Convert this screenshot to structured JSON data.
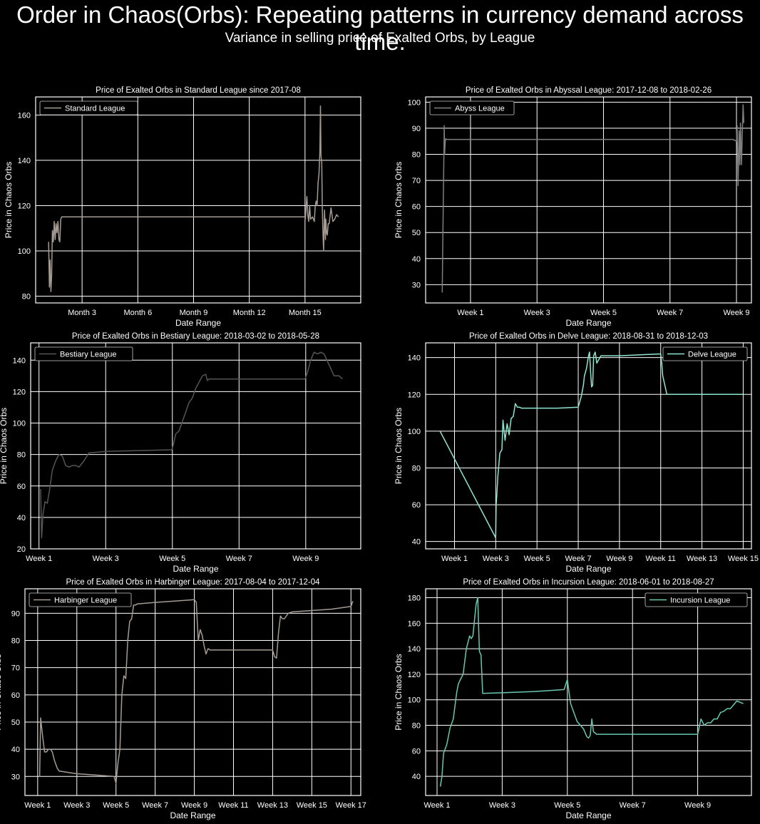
{
  "header": {
    "title": "Order in Chaos(Orbs): Repeating patterns in currency demand across time.",
    "subtitle": "Variance in selling price of Exalted Orbs, by League"
  },
  "colors": {
    "background": "#000000",
    "grid": "#ffffff",
    "text": "#ffffff"
  },
  "chart_data": [
    {
      "type": "line",
      "title": "Price of Exalted Orbs in Standard League since 2017-08",
      "xlabel": "Date Range",
      "ylabel": "Price in Chaos Orbs",
      "xlim": [
        0,
        17.5
      ],
      "ylim": [
        77,
        168
      ],
      "xticks": [
        2.5,
        5.5,
        8.5,
        11.5,
        14.5
      ],
      "xtick_labels": [
        "Month 3",
        "Month 6",
        "Month 9",
        "Month 12",
        "Month 15"
      ],
      "yticks": [
        80,
        100,
        120,
        140,
        160
      ],
      "legend_position": "top-left",
      "grid": true,
      "series": [
        {
          "name": "Standard League",
          "color": "#a49c93",
          "x": [
            0.7,
            0.74,
            0.78,
            0.82,
            0.86,
            0.9,
            0.95,
            1.0,
            1.05,
            1.1,
            1.15,
            1.2,
            1.25,
            1.3,
            1.35,
            1.4,
            1.45,
            1.5,
            1.55,
            1.6,
            1.62,
            2.5,
            5.5,
            8.5,
            11.5,
            14.4,
            14.5,
            14.52,
            14.55,
            14.6,
            14.65,
            14.7,
            14.75,
            14.8,
            14.9,
            15.0,
            15.05,
            15.1,
            15.15,
            15.2,
            15.25,
            15.3,
            15.33,
            15.36,
            15.4,
            15.43,
            15.46,
            15.5,
            15.55,
            15.6,
            15.62,
            15.66,
            15.7,
            15.75,
            15.8,
            15.9,
            16.0,
            16.1,
            16.2,
            16.3
          ],
          "y": [
            104,
            84,
            96,
            82,
            89,
            109,
            104,
            113,
            105,
            112,
            108,
            113,
            105,
            104,
            114,
            115,
            115,
            115,
            115,
            115,
            115,
            115,
            115,
            115,
            115,
            115,
            115,
            114,
            118,
            124,
            116,
            113,
            120,
            114,
            115,
            113,
            120,
            122,
            120,
            130,
            134,
            144,
            164,
            142,
            139,
            119,
            110,
            100,
            118,
            105,
            114,
            108,
            107,
            112,
            112,
            119,
            113,
            114,
            116,
            115
          ]
        }
      ]
    },
    {
      "type": "line",
      "title": "Price of Exalted Orbs in Abyssal League: 2017-12-08 to 2018-02-26",
      "xlabel": "Date Range",
      "ylabel": "Price in Chaos Orbs",
      "xlim": [
        -0.35,
        9.45
      ],
      "ylim": [
        23,
        102
      ],
      "xticks": [
        1,
        3,
        5,
        7,
        9
      ],
      "xtick_labels": [
        "Week 1",
        "Week 3",
        "Week 5",
        "Week 7",
        "Week 9"
      ],
      "yticks": [
        30,
        40,
        50,
        60,
        70,
        80,
        90,
        100
      ],
      "legend_position": "top-left",
      "grid": true,
      "series": [
        {
          "name": "Abyss League",
          "color": "#7f7f7f",
          "x": [
            0.15,
            0.16,
            0.18,
            0.2,
            0.21,
            0.22,
            0.24,
            0.26,
            0.28,
            1,
            3,
            5,
            7,
            8.9,
            9.0,
            9.02,
            9.05,
            9.08,
            9.1,
            9.12,
            9.15,
            9.18,
            9.2,
            9.22
          ],
          "y": [
            27,
            40,
            60,
            79,
            91,
            80,
            85,
            86,
            85.7,
            85.7,
            85.7,
            85.7,
            85.7,
            85.7,
            85,
            91,
            68,
            89,
            76,
            92,
            76,
            90,
            99,
            92
          ]
        }
      ]
    },
    {
      "type": "line",
      "title": "Price of Exalted Orbs in Bestiary League: 2018-03-02 to 2018-05-28",
      "xlabel": "Date Range",
      "ylabel": "Price in Chaos Orbs",
      "xlim": [
        0.75,
        10.65
      ],
      "ylim": [
        20,
        151
      ],
      "xticks": [
        1,
        3,
        5,
        7,
        9
      ],
      "xtick_labels": [
        "Week 1",
        "Week 3",
        "Week 5",
        "Week 7",
        "Week 9"
      ],
      "yticks": [
        20,
        40,
        60,
        80,
        100,
        120,
        140
      ],
      "legend_position": "top-left",
      "grid": true,
      "series": [
        {
          "name": "Bestiary League",
          "color": "#555555",
          "x": [
            1.05,
            1.08,
            1.12,
            1.18,
            1.25,
            1.32,
            1.4,
            1.5,
            1.6,
            1.7,
            1.8,
            1.9,
            2.0,
            2.1,
            2.2,
            2.35,
            2.5,
            3.0,
            4.0,
            4.98,
            5.0,
            5.05,
            5.1,
            5.2,
            5.3,
            5.4,
            5.5,
            5.6,
            5.7,
            5.8,
            5.9,
            6.0,
            6.05,
            6.1,
            6.2,
            7.0,
            8.0,
            8.98,
            9.05,
            9.15,
            9.25,
            9.35,
            9.45,
            9.55,
            9.7,
            9.85,
            10.0,
            10.1
          ],
          "y": [
            58,
            27,
            42,
            50,
            49,
            58,
            70,
            76,
            80,
            79,
            73,
            72,
            73,
            73,
            72,
            76,
            81,
            82,
            82.5,
            83,
            84,
            88,
            93,
            95,
            101,
            107,
            113,
            116,
            122,
            126,
            130,
            131,
            127,
            128,
            128,
            128,
            128,
            128,
            132,
            140,
            145,
            144,
            145,
            144,
            137,
            130,
            130,
            128
          ]
        }
      ]
    },
    {
      "type": "line",
      "title": "Price of Exalted Orbs in Delve League: 2018-08-31 to 2018-12-03",
      "xlabel": "Date Range",
      "ylabel": "Price in Chaos Orbs",
      "xlim": [
        -0.4,
        15.4
      ],
      "ylim": [
        36,
        148
      ],
      "xticks": [
        1,
        3,
        5,
        7,
        9,
        11,
        13,
        15
      ],
      "xtick_labels": [
        "Week 1",
        "Week 3",
        "Week 5",
        "Week 7",
        "Week 9",
        "Week 11",
        "Week 13",
        "Week 15"
      ],
      "yticks": [
        40,
        60,
        80,
        100,
        120,
        140
      ],
      "legend_position": "top-right",
      "grid": true,
      "series": [
        {
          "name": "Delve League",
          "color": "#8de5d0",
          "x": [
            0.3,
            3.0,
            3.02,
            3.05,
            3.1,
            3.2,
            3.3,
            3.35,
            3.45,
            3.55,
            3.65,
            3.75,
            3.85,
            3.95,
            4.05,
            4.15,
            4.25,
            4.35,
            4.5,
            5.0,
            6.0,
            7.0,
            7.05,
            7.15,
            7.25,
            7.3,
            7.4,
            7.5,
            7.55,
            7.6,
            7.65,
            7.7,
            7.75,
            7.82,
            7.9,
            8.0,
            8.1,
            8.2,
            8.3,
            8.4,
            8.5,
            9.0,
            10.0,
            11.0,
            11.05,
            11.1,
            11.2,
            11.3,
            11.4,
            11.5,
            12.0,
            13.0,
            14.0,
            15.0
          ],
          "y": [
            100,
            42,
            60,
            65,
            75,
            88,
            90,
            106,
            95,
            104,
            98,
            107,
            108,
            115,
            113,
            113,
            112.5,
            112.5,
            112.5,
            112.5,
            112.5,
            113,
            115,
            119,
            125,
            130,
            134,
            141,
            143,
            132,
            124,
            125,
            141,
            143,
            137,
            139,
            141,
            141,
            141,
            141,
            141,
            141,
            141.5,
            142,
            137,
            130,
            125,
            120,
            120,
            120,
            120,
            120,
            120,
            120
          ]
        }
      ]
    },
    {
      "type": "line",
      "title": "Price of Exalted Orbs in Harbinger League: 2017-08-04 to 2017-12-04",
      "xlabel": "Date Range",
      "ylabel": "Price in Chaos Orbs",
      "xlim": [
        0.35,
        17.5
      ],
      "ylim": [
        23,
        99
      ],
      "xticks": [
        1,
        3,
        5,
        7,
        9,
        11,
        13,
        15,
        17
      ],
      "xtick_labels": [
        "Week 1",
        "Week 3",
        "Week 5",
        "Week 7",
        "Week 9",
        "Week 11",
        "Week 13",
        "Week 15",
        "Week 17"
      ],
      "yticks": [
        30,
        40,
        50,
        60,
        70,
        80,
        90
      ],
      "legend_position": "top-left",
      "grid": true,
      "series": [
        {
          "name": "Harbinger League",
          "color": "#a49c93",
          "x": [
            1.1,
            1.15,
            1.25,
            1.35,
            1.45,
            1.55,
            1.65,
            1.75,
            1.85,
            2.0,
            2.1,
            3.0,
            4.0,
            4.9,
            5.0,
            5.1,
            5.2,
            5.3,
            5.4,
            5.5,
            5.6,
            5.7,
            5.8,
            5.9,
            6.0,
            6.1,
            6.2,
            7.0,
            8.0,
            9.0,
            9.1,
            9.2,
            9.3,
            9.4,
            9.5,
            9.6,
            9.7,
            9.8,
            10.0,
            11.0,
            12.0,
            13.0,
            13.1,
            13.2,
            13.3,
            13.4,
            13.5,
            13.6,
            13.7,
            13.8,
            14.0,
            15.0,
            16.0,
            17.0,
            17.1
          ],
          "y": [
            30,
            51.5,
            45,
            39,
            39,
            40,
            40,
            39,
            36,
            33,
            32,
            31,
            30.5,
            30,
            27.5,
            35,
            40,
            60,
            67,
            66,
            80,
            87,
            88,
            93,
            93,
            93.5,
            93.5,
            94,
            94.5,
            95,
            94,
            80,
            84,
            82,
            78,
            75,
            77,
            76.5,
            76.5,
            76.5,
            76.5,
            76.5,
            74,
            73.5,
            83,
            89,
            88,
            88,
            89,
            90,
            90.5,
            91,
            91.5,
            92.5,
            94.5
          ]
        }
      ]
    },
    {
      "type": "line",
      "title": "Price of Exalted Orbs in Incursion League: 2018-06-01 to 2018-08-27",
      "xlabel": "Date Range",
      "ylabel": "Price in Chaos Orbs",
      "xlim": [
        0.65,
        10.65
      ],
      "ylim": [
        25,
        187
      ],
      "xticks": [
        1,
        3,
        5,
        7,
        9
      ],
      "xtick_labels": [
        "Week 1",
        "Week 3",
        "Week 5",
        "Week 7",
        "Week 9"
      ],
      "yticks": [
        40,
        60,
        80,
        100,
        120,
        140,
        160,
        180
      ],
      "legend_position": "top-right",
      "grid": true,
      "series": [
        {
          "name": "Incursion League",
          "color": "#69c7af",
          "x": [
            1.1,
            1.15,
            1.2,
            1.3,
            1.4,
            1.5,
            1.6,
            1.65,
            1.7,
            1.8,
            1.9,
            2.0,
            2.05,
            2.1,
            2.2,
            2.25,
            2.3,
            2.35,
            2.4,
            3.0,
            4.0,
            4.9,
            5.0,
            5.05,
            5.1,
            5.2,
            5.3,
            5.4,
            5.5,
            5.6,
            5.65,
            5.7,
            5.75,
            5.8,
            5.9,
            6.0,
            7.0,
            8.0,
            8.9,
            9.0,
            9.1,
            9.2,
            9.3,
            9.4,
            9.5,
            9.6,
            9.7,
            9.8,
            9.9,
            10.0,
            10.1,
            10.2,
            10.4
          ],
          "y": [
            32,
            40,
            58,
            65,
            78,
            85,
            105,
            112,
            115,
            120,
            140,
            150,
            148,
            150,
            175,
            180,
            138,
            135,
            105,
            105.5,
            106.5,
            108,
            116,
            106,
            97,
            90,
            83,
            80,
            77,
            71,
            70,
            72,
            85,
            75,
            73,
            73,
            73,
            73,
            73,
            73,
            85,
            80,
            82,
            82,
            85,
            85,
            90,
            91,
            93,
            93,
            96,
            99,
            97
          ]
        }
      ]
    }
  ]
}
